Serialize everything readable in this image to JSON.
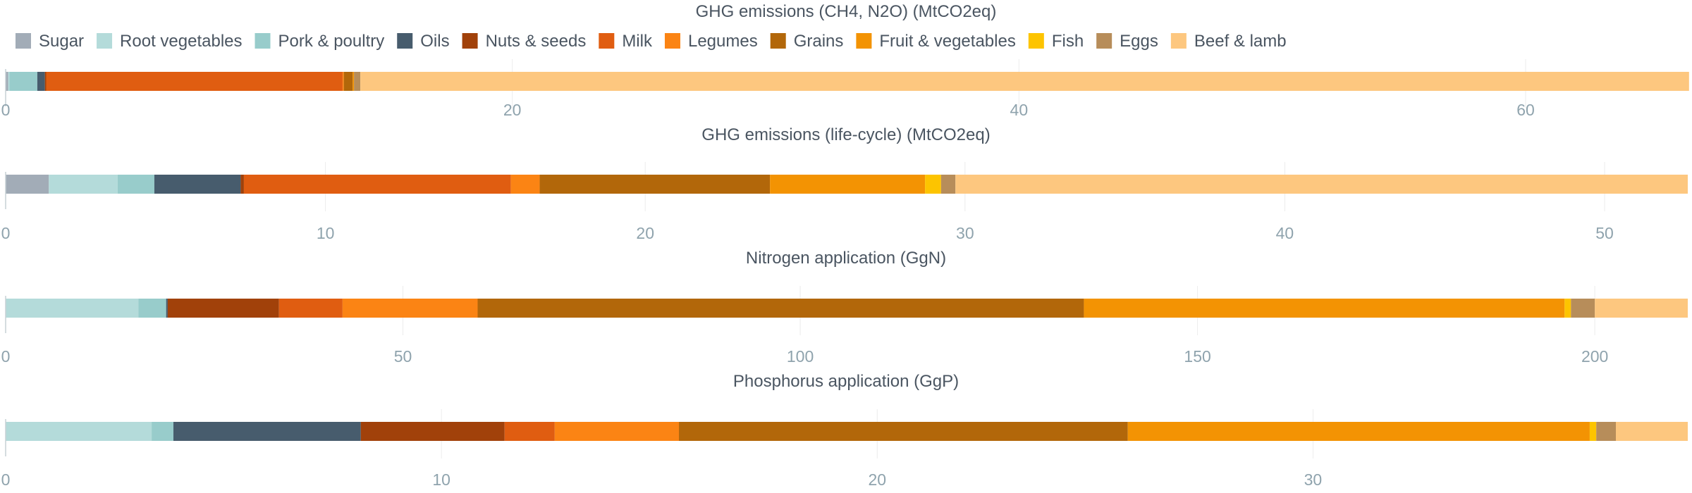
{
  "legend": [
    {
      "name": "Sugar",
      "color": "#a2acb7"
    },
    {
      "name": "Root vegetables",
      "color": "#b4dbda"
    },
    {
      "name": "Pork & poultry",
      "color": "#98cccb"
    },
    {
      "name": "Oils",
      "color": "#475c6d"
    },
    {
      "name": "Nuts & seeds",
      "color": "#a1410a"
    },
    {
      "name": "Milk",
      "color": "#e05d11"
    },
    {
      "name": "Legumes",
      "color": "#fb8414"
    },
    {
      "name": "Grains",
      "color": "#b2670a"
    },
    {
      "name": "Fruit & vegetables",
      "color": "#f39303"
    },
    {
      "name": "Fish",
      "color": "#fdc400"
    },
    {
      "name": "Eggs",
      "color": "#b78d5a"
    },
    {
      "name": "Beef & lamb",
      "color": "#fdc77f"
    }
  ],
  "chart_data": [
    {
      "type": "bar",
      "orientation": "horizontal-stacked",
      "title": "GHG emissions (CH4, N2O) (MtCO2eq)",
      "xlim": [
        0,
        66.4
      ],
      "ticks": [
        0,
        20,
        40,
        60
      ],
      "segments": [
        {
          "name": "Sugar",
          "value": 0.1
        },
        {
          "name": "Root vegetables",
          "value": 0.05
        },
        {
          "name": "Pork & poultry",
          "value": 1.1
        },
        {
          "name": "Oils",
          "value": 0.3
        },
        {
          "name": "Nuts & seeds",
          "value": 0.05
        },
        {
          "name": "Milk",
          "value": 11.7
        },
        {
          "name": "Legumes",
          "value": 0.05
        },
        {
          "name": "Grains",
          "value": 0.35
        },
        {
          "name": "Fruit & vegetables",
          "value": 0.05
        },
        {
          "name": "Fish",
          "value": 0.0
        },
        {
          "name": "Eggs",
          "value": 0.25
        },
        {
          "name": "Beef & lamb",
          "value": 52.45
        }
      ]
    },
    {
      "type": "bar",
      "orientation": "horizontal-stacked",
      "title": "GHG emissions (life-cycle) (MtCO2eq)",
      "xlim": [
        0,
        52.6
      ],
      "ticks": [
        0,
        10,
        20,
        30,
        40,
        50
      ],
      "segments": [
        {
          "name": "Sugar",
          "value": 1.35
        },
        {
          "name": "Root vegetables",
          "value": 2.15
        },
        {
          "name": "Pork & poultry",
          "value": 1.15
        },
        {
          "name": "Oils",
          "value": 2.7
        },
        {
          "name": "Nuts & seeds",
          "value": 0.1
        },
        {
          "name": "Milk",
          "value": 8.35
        },
        {
          "name": "Legumes",
          "value": 0.9
        },
        {
          "name": "Grains",
          "value": 7.2
        },
        {
          "name": "Fruit & vegetables",
          "value": 4.85
        },
        {
          "name": "Fish",
          "value": 0.5
        },
        {
          "name": "Eggs",
          "value": 0.45
        },
        {
          "name": "Beef & lamb",
          "value": 22.9
        }
      ]
    },
    {
      "type": "bar",
      "orientation": "horizontal-stacked",
      "title": "Nitrogen application (GgN)",
      "xlim": [
        0,
        211.7
      ],
      "ticks": [
        0,
        50,
        100,
        150,
        200
      ],
      "segments": [
        {
          "name": "Sugar",
          "value": 0.0
        },
        {
          "name": "Root vegetables",
          "value": 16.7
        },
        {
          "name": "Pork & poultry",
          "value": 3.5
        },
        {
          "name": "Oils",
          "value": 0.2
        },
        {
          "name": "Nuts & seeds",
          "value": 14.0
        },
        {
          "name": "Milk",
          "value": 8.0
        },
        {
          "name": "Legumes",
          "value": 17.0
        },
        {
          "name": "Grains",
          "value": 76.3
        },
        {
          "name": "Fruit & vegetables",
          "value": 60.5
        },
        {
          "name": "Fish",
          "value": 0.8
        },
        {
          "name": "Eggs",
          "value": 3.0
        },
        {
          "name": "Beef & lamb",
          "value": 11.7
        }
      ]
    },
    {
      "type": "bar",
      "orientation": "horizontal-stacked",
      "title": "Phosphorus application (GgP)",
      "xlim": [
        0,
        38.6
      ],
      "ticks": [
        0,
        10,
        20,
        30
      ],
      "segments": [
        {
          "name": "Sugar",
          "value": 0.0
        },
        {
          "name": "Root vegetables",
          "value": 3.35
        },
        {
          "name": "Pork & poultry",
          "value": 0.5
        },
        {
          "name": "Oils",
          "value": 4.3
        },
        {
          "name": "Nuts & seeds",
          "value": 3.3
        },
        {
          "name": "Milk",
          "value": 1.15
        },
        {
          "name": "Legumes",
          "value": 2.85
        },
        {
          "name": "Grains",
          "value": 10.3
        },
        {
          "name": "Fruit & vegetables",
          "value": 10.6
        },
        {
          "name": "Fish",
          "value": 0.15
        },
        {
          "name": "Eggs",
          "value": 0.45
        },
        {
          "name": "Beef & lamb",
          "value": 1.65
        }
      ]
    }
  ]
}
